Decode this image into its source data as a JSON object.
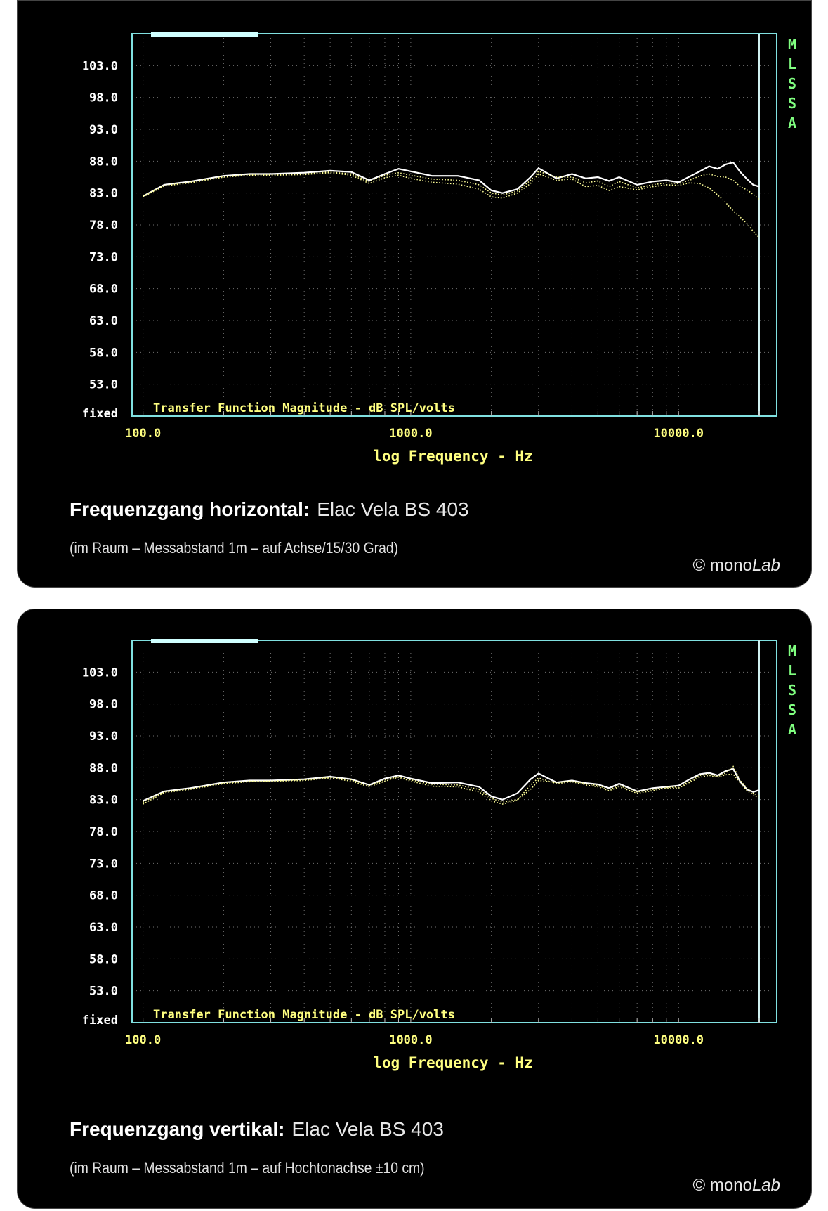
{
  "colors": {
    "panel_bg": "#000000",
    "frame": "#80e0e0",
    "grid": "#707070",
    "curve_main": "#ffffff",
    "curve_secondary": "#ffff99",
    "axis_text_y": "#ffffff",
    "axis_text_x": "#ffff80",
    "mlssa": "#80ff80"
  },
  "copyright": {
    "symbol": "©",
    "mono": "mono",
    "lab": "Lab"
  },
  "chart_data": [
    {
      "type": "line",
      "title": "Transfer Function Magnitude - dB SPL/volts",
      "xlabel": "log Frequency - Hz",
      "ylabel": "",
      "xscale": "log",
      "xlim": [
        91,
        20000
      ],
      "ylim": [
        48,
        108
      ],
      "fixed_label": "fixed",
      "side_label": [
        "M",
        "L",
        "S",
        "S",
        "A"
      ],
      "yticks": [
        {
          "value": 103,
          "label": "103.0"
        },
        {
          "value": 98,
          "label": "98.0"
        },
        {
          "value": 93,
          "label": "93.0"
        },
        {
          "value": 88,
          "label": "88.0"
        },
        {
          "value": 83,
          "label": "83.0"
        },
        {
          "value": 78,
          "label": "78.0"
        },
        {
          "value": 73,
          "label": "73.0"
        },
        {
          "value": 68,
          "label": "68.0"
        },
        {
          "value": 63,
          "label": "63.0"
        },
        {
          "value": 58,
          "label": "58.0"
        },
        {
          "value": 53,
          "label": "53.0"
        }
      ],
      "xticks": [
        {
          "value": 100,
          "label": "100.0"
        },
        {
          "value": 1000,
          "label": "1000.0"
        },
        {
          "value": 10000,
          "label": "10000.0"
        }
      ],
      "caption_bold": "Frequenzgang horizontal:",
      "caption_light": "Elac Vela BS 403",
      "subcaption": "(im Raum – Messabstand 1m – auf Achse/15/30 Grad)",
      "x": [
        100,
        120,
        150,
        200,
        250,
        300,
        400,
        500,
        600,
        700,
        800,
        900,
        1000,
        1200,
        1500,
        1800,
        2000,
        2200,
        2500,
        2800,
        3000,
        3500,
        4000,
        4500,
        5000,
        5500,
        6000,
        7000,
        8000,
        9000,
        10000,
        11000,
        12000,
        13000,
        14000,
        15000,
        16000,
        17000,
        18000,
        19000,
        20000
      ],
      "series": [
        {
          "style": "solid",
          "values": [
            82.5,
            84.3,
            84.8,
            85.7,
            86.0,
            86.0,
            86.2,
            86.5,
            86.3,
            85.0,
            86.0,
            86.8,
            86.4,
            85.7,
            85.7,
            85.0,
            83.4,
            83.0,
            83.6,
            85.5,
            86.9,
            85.3,
            86.0,
            85.3,
            85.5,
            84.9,
            85.5,
            84.3,
            84.8,
            85.0,
            84.7,
            85.6,
            86.4,
            87.2,
            86.8,
            87.5,
            87.8,
            86.3,
            85.2,
            84.3,
            84.0
          ]
        },
        {
          "style": "dotted",
          "values": [
            82.5,
            84.2,
            84.7,
            85.6,
            85.9,
            85.9,
            86.0,
            86.3,
            86.0,
            84.8,
            85.8,
            86.2,
            85.8,
            85.2,
            85.0,
            84.3,
            83.0,
            82.7,
            83.3,
            85.0,
            86.4,
            85.5,
            85.5,
            84.6,
            84.9,
            84.0,
            84.8,
            83.8,
            84.3,
            84.6,
            84.5,
            85.0,
            85.7,
            86.0,
            85.6,
            85.5,
            85.0,
            84.0,
            83.5,
            82.8,
            82.0
          ]
        },
        {
          "style": "dotted",
          "values": [
            82.4,
            84.1,
            84.6,
            85.5,
            85.8,
            85.8,
            85.9,
            86.2,
            85.8,
            84.5,
            85.4,
            85.8,
            85.3,
            84.7,
            84.4,
            83.6,
            82.4,
            82.2,
            83.0,
            84.5,
            86.0,
            85.0,
            85.2,
            84.0,
            84.2,
            83.4,
            84.0,
            83.5,
            84.0,
            84.3,
            84.2,
            84.6,
            84.5,
            83.8,
            82.7,
            81.5,
            80.2,
            79.2,
            78.2,
            77.0,
            76.0
          ]
        }
      ]
    },
    {
      "type": "line",
      "title": "Transfer Function Magnitude - dB SPL/volts",
      "xlabel": "log Frequency - Hz",
      "ylabel": "",
      "xscale": "log",
      "xlim": [
        91,
        20000
      ],
      "ylim": [
        48,
        108
      ],
      "fixed_label": "fixed",
      "side_label": [
        "M",
        "L",
        "S",
        "S",
        "A"
      ],
      "yticks": [
        {
          "value": 103,
          "label": "103.0"
        },
        {
          "value": 98,
          "label": "98.0"
        },
        {
          "value": 93,
          "label": "93.0"
        },
        {
          "value": 88,
          "label": "88.0"
        },
        {
          "value": 83,
          "label": "83.0"
        },
        {
          "value": 78,
          "label": "78.0"
        },
        {
          "value": 73,
          "label": "73.0"
        },
        {
          "value": 68,
          "label": "68.0"
        },
        {
          "value": 63,
          "label": "63.0"
        },
        {
          "value": 58,
          "label": "58.0"
        },
        {
          "value": 53,
          "label": "53.0"
        }
      ],
      "xticks": [
        {
          "value": 100,
          "label": "100.0"
        },
        {
          "value": 1000,
          "label": "1000.0"
        },
        {
          "value": 10000,
          "label": "10000.0"
        }
      ],
      "caption_bold": "Frequenzgang vertikal:",
      "caption_light": "Elac Vela BS 403",
      "subcaption": "(im Raum – Messabstand 1m – auf Hochtonachse ±10 cm)",
      "x": [
        100,
        120,
        150,
        200,
        250,
        300,
        400,
        500,
        600,
        700,
        800,
        900,
        1000,
        1200,
        1500,
        1800,
        2000,
        2200,
        2500,
        2800,
        3000,
        3500,
        4000,
        4500,
        5000,
        5500,
        6000,
        7000,
        8000,
        9000,
        10000,
        11000,
        12000,
        13000,
        14000,
        15000,
        16000,
        17000,
        18000,
        19000,
        20000
      ],
      "series": [
        {
          "style": "solid",
          "values": [
            82.8,
            84.3,
            84.8,
            85.7,
            86.0,
            86.0,
            86.2,
            86.6,
            86.2,
            85.3,
            86.3,
            86.8,
            86.3,
            85.6,
            85.7,
            85.0,
            83.5,
            83.0,
            84.0,
            86.2,
            87.1,
            85.7,
            86.0,
            85.6,
            85.4,
            84.8,
            85.5,
            84.3,
            84.8,
            85.0,
            85.2,
            86.2,
            87.0,
            87.2,
            86.8,
            87.5,
            87.8,
            85.8,
            84.6,
            84.2,
            84.5
          ]
        },
        {
          "style": "dotted",
          "values": [
            82.3,
            84.1,
            84.6,
            85.5,
            85.8,
            85.9,
            86.0,
            86.4,
            85.9,
            85.0,
            85.9,
            86.5,
            85.9,
            85.1,
            85.0,
            84.2,
            82.8,
            82.3,
            82.9,
            85.3,
            86.4,
            85.5,
            85.8,
            85.3,
            85.0,
            84.4,
            85.0,
            84.0,
            84.4,
            84.8,
            84.8,
            85.7,
            86.5,
            86.8,
            86.5,
            86.9,
            87.0,
            85.6,
            84.4,
            83.8,
            83.2
          ]
        },
        {
          "style": "dotted",
          "values": [
            82.6,
            84.2,
            84.7,
            85.6,
            85.9,
            85.9,
            86.1,
            86.5,
            86.1,
            85.2,
            86.1,
            86.6,
            86.1,
            85.4,
            85.3,
            84.6,
            83.2,
            82.6,
            83.0,
            84.6,
            86.0,
            85.7,
            85.9,
            85.5,
            85.2,
            84.6,
            85.2,
            84.2,
            84.6,
            84.9,
            85.0,
            85.9,
            86.8,
            87.0,
            86.6,
            87.2,
            88.2,
            86.0,
            84.8,
            84.0,
            83.6
          ]
        }
      ]
    }
  ]
}
